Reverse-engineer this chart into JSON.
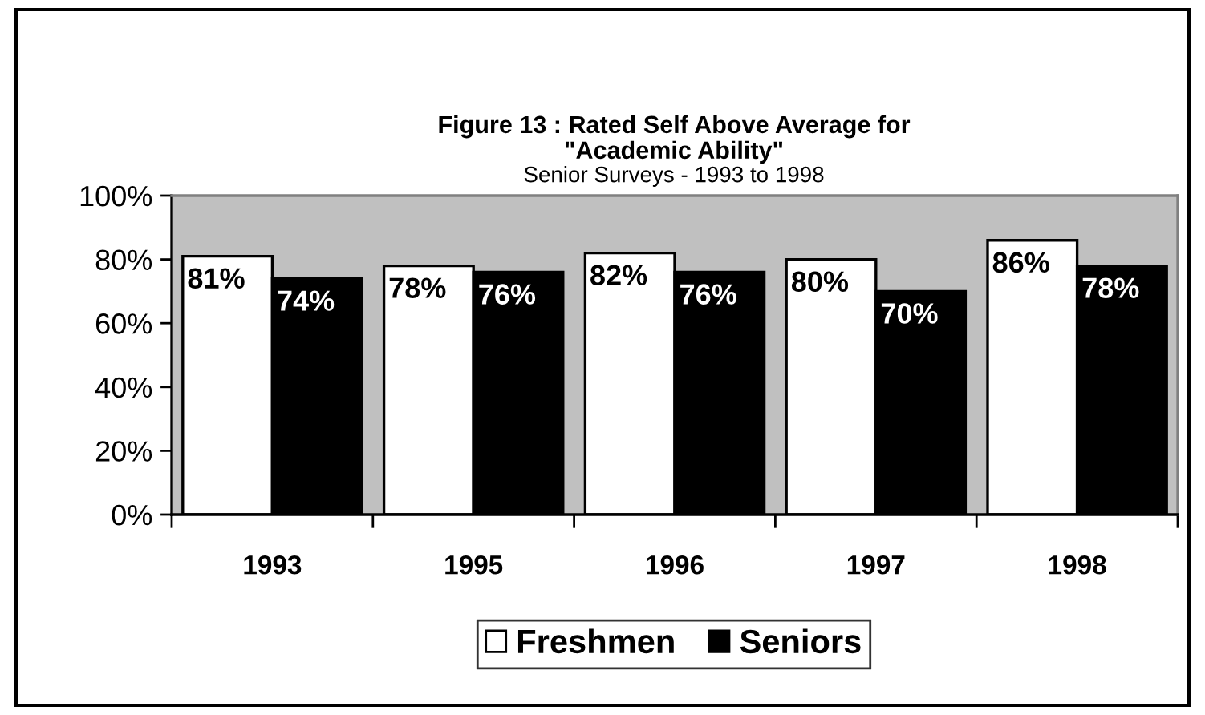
{
  "chart_data": {
    "type": "bar",
    "title": "Figure 13 : Rated Self Above Average for\n\"Academic Ability\"",
    "subtitle": "Senior Surveys - 1993 to 1998",
    "categories": [
      "1993",
      "1995",
      "1996",
      "1997",
      "1998"
    ],
    "series": [
      {
        "name": "Freshmen",
        "color": "#ffffff",
        "values": [
          81,
          78,
          82,
          80,
          86
        ],
        "value_labels": [
          "81%",
          "78%",
          "82%",
          "80%",
          "86%"
        ]
      },
      {
        "name": "Seniors",
        "color": "#000000",
        "values": [
          74,
          76,
          76,
          70,
          78
        ],
        "value_labels": [
          "74%",
          "76%",
          "76%",
          "70%",
          "78%"
        ]
      }
    ],
    "ylim": [
      0,
      100
    ],
    "yticks": [
      {
        "value": 0,
        "label": "0%"
      },
      {
        "value": 20,
        "label": "20%"
      },
      {
        "value": 40,
        "label": "40%"
      },
      {
        "value": 60,
        "label": "60%"
      },
      {
        "value": 80,
        "label": "80%"
      },
      {
        "value": 100,
        "label": "100%"
      }
    ],
    "legend": "bottom"
  }
}
